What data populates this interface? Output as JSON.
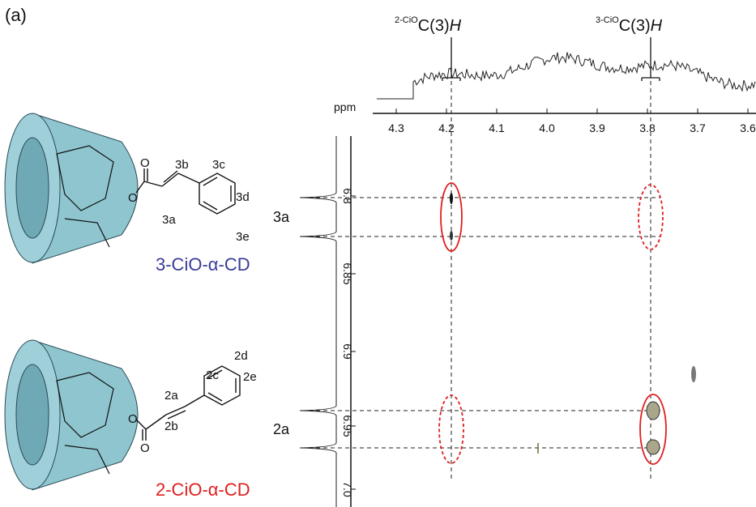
{
  "panel_label": "(a)",
  "top_annotations": [
    {
      "prefix": "2-CiO",
      "main": "C(3)",
      "italic": "H"
    },
    {
      "prefix": "3-CiO",
      "main": "C(3)",
      "italic": "H"
    }
  ],
  "x_axis": {
    "unit": "ppm",
    "ticks": [
      "4.3",
      "4.2",
      "4.1",
      "4.0",
      "3.9",
      "3.8",
      "3.7",
      "3.6"
    ]
  },
  "y_axis": {
    "ticks": [
      "6.8",
      "6.85",
      "6.9",
      "6.95",
      "7.0"
    ]
  },
  "peak_labels": [
    "3a",
    "2a"
  ],
  "molecules": [
    {
      "name": "3-CiO-α-CD",
      "carbonyl_o": "O",
      "ester_o": "O",
      "labels": [
        "3b",
        "3c",
        "3d",
        "3a",
        "3e"
      ]
    },
    {
      "name": "2-CiO-α-CD",
      "carbonyl_o": "O",
      "ester_o": "O",
      "labels": [
        "2c",
        "2d",
        "2a",
        "2e",
        "2b"
      ]
    }
  ]
}
